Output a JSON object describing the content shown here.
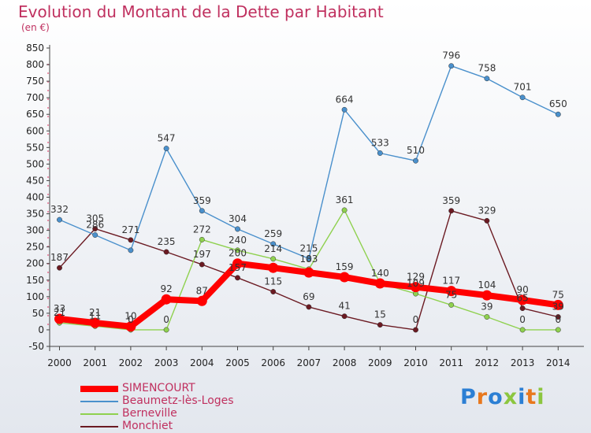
{
  "header": {
    "title": "Evolution du Montant de la Dette par Habitant",
    "subtitle": "(en €)"
  },
  "logo": {
    "text": "Proxiti",
    "colors": [
      "#2c7fd4",
      "#e8781e",
      "#2c7fd4",
      "#8cc63f",
      "#2c7fd4",
      "#e8781e",
      "#8cc63f"
    ]
  },
  "chart_data": {
    "type": "line",
    "x": [
      2000,
      2001,
      2002,
      2003,
      2004,
      2005,
      2006,
      2007,
      2008,
      2009,
      2010,
      2011,
      2012,
      2013,
      2014
    ],
    "ylim": [
      -50,
      850
    ],
    "yticks": [
      -50,
      0,
      50,
      100,
      150,
      200,
      250,
      300,
      350,
      400,
      450,
      500,
      550,
      600,
      650,
      700,
      750,
      800,
      850
    ],
    "grid": false,
    "legend_position": "bottom-left",
    "series": [
      {
        "name": "SIMENCOURT",
        "color": "#ff0000",
        "values": [
          33,
          21,
          10,
          92,
          87,
          200,
          187,
          173,
          159,
          140,
          129,
          117,
          104,
          90,
          75
        ],
        "labels": [
          "33",
          "21",
          "10",
          "92",
          "87",
          "200",
          "",
          "",
          "159",
          "",
          "129",
          "117",
          "104",
          "90",
          "75"
        ]
      },
      {
        "name": "Beaumetz-lès-Loges",
        "color": "#4a90cc",
        "values": [
          332,
          286,
          240,
          547,
          359,
          304,
          259,
          215,
          664,
          533,
          510,
          796,
          758,
          701,
          650
        ],
        "labels": [
          "332",
          "286",
          "",
          "547",
          "359",
          "304",
          "259",
          "215",
          "664",
          "533",
          "510",
          "796",
          "758",
          "701",
          "650"
        ]
      },
      {
        "name": "Berneville",
        "color": "#8fd14f",
        "values": [
          21,
          11,
          0,
          0,
          272,
          240,
          214,
          183,
          361,
          140,
          109,
          75,
          39,
          0,
          0
        ],
        "labels": [
          "21",
          "11",
          "0",
          "0",
          "272",
          "240",
          "214",
          "183",
          "361",
          "140",
          "109",
          "75",
          "39",
          "0",
          "0"
        ]
      },
      {
        "name": "Monchiet",
        "color": "#6b1a22",
        "values": [
          187,
          305,
          271,
          235,
          197,
          157,
          115,
          69,
          41,
          15,
          0,
          359,
          329,
          65,
          39
        ],
        "labels": [
          "187",
          "305",
          "271",
          "235",
          "197",
          "157",
          "115",
          "69",
          "41",
          "15",
          "0",
          "359",
          "329",
          "65",
          "39"
        ]
      }
    ]
  }
}
